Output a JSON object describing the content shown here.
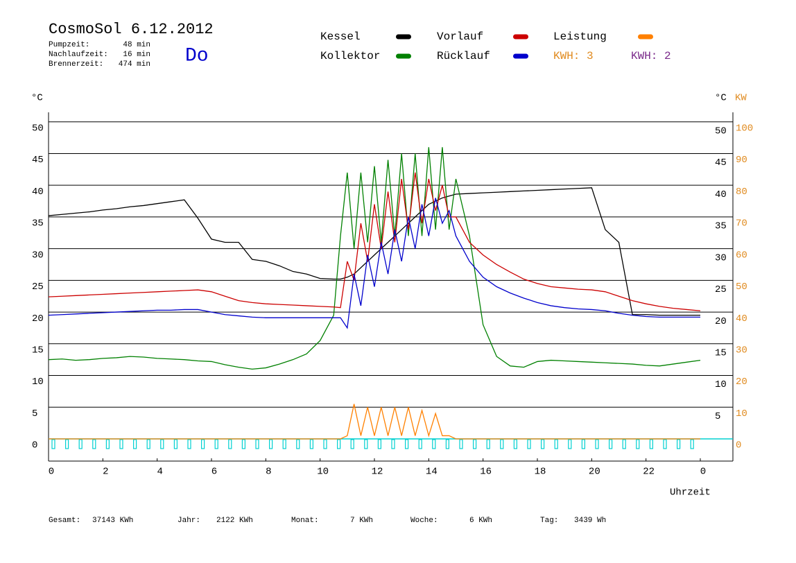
{
  "header": {
    "weekday": "Do",
    "stats": [
      [
        "Pumpzeit:",
        "48 min"
      ],
      [
        "Nachlaufzeit:",
        "16 min"
      ],
      [
        "Brennerzeit:",
        "474 min"
      ]
    ],
    "kwh_labels": [
      "KWH: 3",
      "KWH: 2"
    ]
  },
  "footer": [
    [
      "Gesamt:",
      "37143 KWh"
    ],
    [
      "Jahr:",
      "2122 KWh"
    ],
    [
      "Monat:",
      "7 KWh"
    ],
    [
      "Woche:",
      "6 KWh"
    ],
    [
      "Tag:",
      "3439 Wh"
    ]
  ],
  "chart_data": {
    "type": "line",
    "title": "CosmoSol 6.12.2012",
    "y_label": "°C",
    "y_right_label": "°C",
    "y2_label": "KW",
    "x_label": "Uhrzeit",
    "x": [
      0,
      0.5,
      1,
      1.5,
      2,
      2.5,
      3,
      3.5,
      4,
      4.5,
      5,
      5.5,
      6,
      6.5,
      7,
      7.5,
      8,
      8.5,
      9,
      9.5,
      10,
      10.5,
      10.75,
      11,
      11.25,
      11.5,
      11.75,
      12,
      12.25,
      12.5,
      12.75,
      13,
      13.25,
      13.5,
      13.75,
      14,
      14.25,
      14.5,
      14.75,
      15,
      15.5,
      16,
      16.5,
      17,
      17.5,
      18,
      18.5,
      19,
      19.5,
      20,
      20.5,
      21,
      21.5,
      22,
      22.5,
      23,
      23.5,
      24
    ],
    "xlim": [
      0,
      25.2
    ],
    "xticks": [
      0,
      2,
      4,
      6,
      8,
      10,
      12,
      14,
      16,
      18,
      20,
      22,
      {
        "value": 24,
        "label": "0"
      }
    ],
    "ylim": [
      -3.5,
      51.5
    ],
    "yticks": [
      0,
      5,
      10,
      15,
      20,
      25,
      30,
      35,
      40,
      45,
      50
    ],
    "y_right_ticks": [
      5,
      10,
      15,
      20,
      25,
      30,
      35,
      40,
      45,
      50
    ],
    "y2lim": [
      -7,
      103
    ],
    "y2ticks": [
      0,
      10,
      20,
      30,
      40,
      50,
      60,
      70,
      80,
      90,
      100
    ],
    "grid": true,
    "series": [
      {
        "name": "Kessel",
        "color": "#000000",
        "values": [
          35.2,
          35.4,
          35.6,
          35.8,
          36.1,
          36.3,
          36.6,
          36.8,
          37.1,
          37.4,
          37.7,
          34.8,
          31.5,
          31,
          31,
          28.3,
          28,
          27.3,
          26.4,
          26,
          25.3,
          25.2,
          25.2,
          25.5,
          26,
          27,
          28,
          29,
          30,
          31,
          32,
          33,
          34,
          35,
          36,
          37,
          37.5,
          38,
          38.3,
          38.6,
          38.7,
          38.8,
          38.9,
          39,
          39.1,
          39.2,
          39.3,
          39.4,
          39.5,
          39.6,
          33,
          31,
          19.6,
          19.6,
          19.5,
          19.5,
          19.5,
          19.5
        ]
      },
      {
        "name": "Kollektor",
        "color": "#008000",
        "values": [
          12.5,
          12.6,
          12.4,
          12.5,
          12.7,
          12.8,
          13,
          12.9,
          12.7,
          12.6,
          12.5,
          12.3,
          12.2,
          11.7,
          11.3,
          11,
          11.2,
          11.8,
          12.5,
          13.4,
          15.5,
          19.5,
          32,
          42,
          30,
          42,
          31,
          43,
          31,
          44,
          32,
          45,
          32,
          45,
          32,
          46,
          33,
          46,
          33,
          41,
          32,
          18,
          13,
          11.5,
          11.3,
          12.2,
          12.4,
          12.3,
          12.2,
          12.1,
          12,
          11.9,
          11.8,
          11.6,
          11.5,
          11.8,
          12.1,
          12.4
        ]
      },
      {
        "name": "Vorlauf",
        "color": "#cc0000",
        "values": [
          22.4,
          22.5,
          22.6,
          22.7,
          22.8,
          22.9,
          23,
          23.1,
          23.2,
          23.3,
          23.4,
          23.5,
          23.2,
          22.5,
          21.8,
          21.5,
          21.3,
          21.2,
          21.1,
          21,
          20.9,
          20.8,
          20.7,
          28,
          25,
          34,
          28,
          37,
          30,
          39,
          31,
          41,
          33,
          42,
          34,
          41,
          36,
          40,
          35,
          35,
          31,
          29,
          27.5,
          26.3,
          25.2,
          24.5,
          24,
          23.8,
          23.6,
          23.5,
          23.2,
          22.5,
          21.8,
          21.3,
          20.9,
          20.6,
          20.4,
          20.2
        ]
      },
      {
        "name": "Rücklauf",
        "color": "#0000cc",
        "values": [
          19.5,
          19.6,
          19.7,
          19.8,
          19.9,
          20,
          20.1,
          20.2,
          20.3,
          20.3,
          20.4,
          20.4,
          20,
          19.6,
          19.4,
          19.2,
          19.1,
          19.1,
          19.1,
          19.1,
          19.1,
          19.1,
          19.1,
          17.5,
          26,
          21,
          29,
          24,
          31,
          26,
          33,
          28,
          35,
          30,
          37,
          32,
          38,
          34,
          36,
          32,
          28,
          25.5,
          24,
          23,
          22.2,
          21.5,
          21,
          20.7,
          20.5,
          20.4,
          20.2,
          19.8,
          19.5,
          19.3,
          19.2,
          19.2,
          19.2,
          19.2
        ]
      },
      {
        "name": "Leistung",
        "color": "#ff8000",
        "axis": "y2",
        "values": [
          0,
          0,
          0,
          0,
          0,
          0,
          0,
          0,
          0,
          0,
          0,
          0,
          0,
          0,
          0,
          0,
          0,
          0,
          0,
          0,
          0,
          0,
          0,
          1,
          11,
          1,
          10,
          1,
          10,
          1,
          10,
          1,
          10,
          1,
          9,
          1,
          8,
          1,
          1,
          0,
          0,
          0,
          0,
          0,
          0,
          0,
          0,
          0,
          0,
          0,
          0,
          0,
          0,
          0,
          0,
          0,
          0,
          0
        ]
      }
    ]
  }
}
